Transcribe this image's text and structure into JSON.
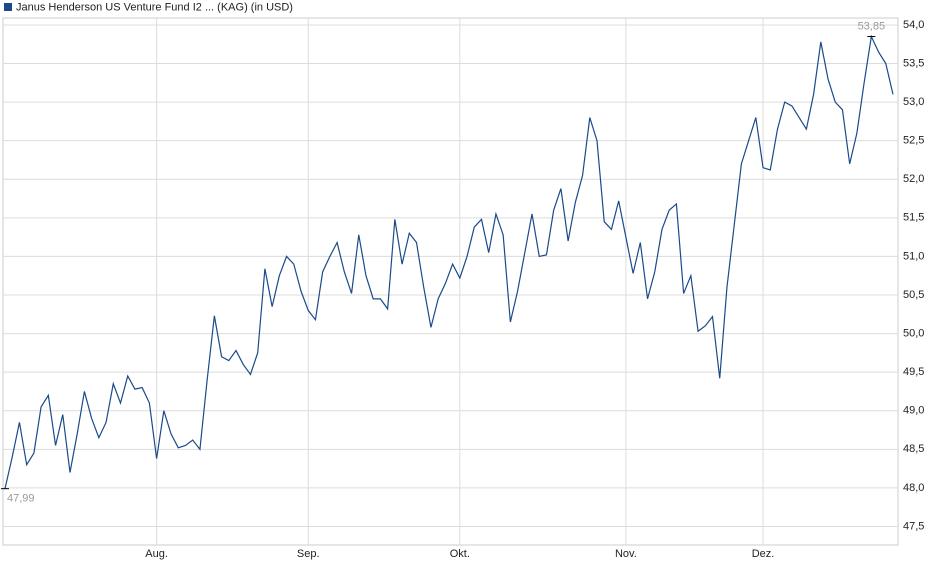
{
  "chart_data": {
    "type": "line",
    "categories": [
      null,
      null,
      null,
      null,
      null,
      null,
      null,
      null,
      null,
      null,
      null,
      null,
      null,
      null,
      null,
      null,
      null,
      null,
      null,
      null,
      null,
      "Aug.",
      null,
      null,
      null,
      null,
      null,
      null,
      null,
      null,
      null,
      null,
      null,
      null,
      null,
      null,
      null,
      null,
      null,
      null,
      null,
      null,
      "Sep.",
      null,
      null,
      null,
      null,
      null,
      null,
      null,
      null,
      null,
      null,
      null,
      null,
      null,
      null,
      null,
      null,
      null,
      null,
      null,
      null,
      "Okt.",
      null,
      null,
      null,
      null,
      null,
      null,
      null,
      null,
      null,
      null,
      null,
      null,
      null,
      null,
      null,
      null,
      null,
      null,
      null,
      null,
      null,
      null,
      "Nov.",
      null,
      null,
      null,
      null,
      null,
      null,
      null,
      null,
      null,
      null,
      null,
      null,
      null,
      null,
      null,
      null,
      null,
      null,
      "Dez.",
      null,
      null,
      null,
      null,
      null,
      null,
      null,
      null,
      null,
      null,
      null,
      null,
      null,
      null,
      null,
      null,
      null,
      null
    ],
    "series": [
      {
        "name": "Janus Henderson US Venture Fund I2 ... (KAG) (in USD)",
        "color": "#1a4a8a",
        "values": [
          47.99,
          48.4,
          48.85,
          48.3,
          48.45,
          49.05,
          49.2,
          48.55,
          48.95,
          48.2,
          48.7,
          49.25,
          48.9,
          48.65,
          48.85,
          49.35,
          49.1,
          49.45,
          49.28,
          49.3,
          49.1,
          48.38,
          49.0,
          48.7,
          48.52,
          48.55,
          48.62,
          48.5,
          49.4,
          50.23,
          49.7,
          49.65,
          49.78,
          49.6,
          49.47,
          49.75,
          50.84,
          50.35,
          50.75,
          51.0,
          50.9,
          50.55,
          50.3,
          50.18,
          50.8,
          51.0,
          51.18,
          50.8,
          50.52,
          51.28,
          50.75,
          50.45,
          50.45,
          50.32,
          51.48,
          50.9,
          51.3,
          51.18,
          50.6,
          50.08,
          50.45,
          50.65,
          50.9,
          50.72,
          51.0,
          51.38,
          51.48,
          51.05,
          51.55,
          51.28,
          50.15,
          50.55,
          51.05,
          51.55,
          51.0,
          51.02,
          51.6,
          51.88,
          51.2,
          51.7,
          52.05,
          52.8,
          52.5,
          51.45,
          51.35,
          51.72,
          51.25,
          50.78,
          51.18,
          50.45,
          50.8,
          51.35,
          51.6,
          51.68,
          50.52,
          50.75,
          50.03,
          50.1,
          50.22,
          49.42,
          50.6,
          51.4,
          52.2,
          52.5,
          52.8,
          52.15,
          52.12,
          52.65,
          53.0,
          52.95,
          52.8,
          52.65,
          53.1,
          53.78,
          53.3,
          53.0,
          52.9,
          52.2,
          52.6,
          53.25,
          53.85,
          53.65,
          53.5,
          53.1
        ],
        "value_labels": [
          "47,99",
          null,
          null,
          null,
          null,
          null,
          null,
          null,
          null,
          null,
          null,
          null,
          null,
          null,
          null,
          null,
          null,
          null,
          null,
          null,
          null,
          null,
          null,
          null,
          null,
          null,
          null,
          null,
          null,
          null,
          null,
          null,
          null,
          null,
          null,
          null,
          null,
          null,
          null,
          null,
          null,
          null,
          null,
          null,
          null,
          null,
          null,
          null,
          null,
          null,
          null,
          null,
          null,
          null,
          null,
          null,
          null,
          null,
          null,
          null,
          null,
          null,
          null,
          null,
          null,
          null,
          null,
          null,
          null,
          null,
          null,
          null,
          null,
          null,
          null,
          null,
          null,
          null,
          null,
          null,
          null,
          null,
          null,
          null,
          null,
          null,
          null,
          null,
          null,
          null,
          null,
          null,
          null,
          null,
          null,
          null,
          null,
          null,
          null,
          null,
          null,
          null,
          null,
          null,
          null,
          null,
          null,
          null,
          null,
          null,
          null,
          null,
          null,
          null,
          null,
          null,
          null,
          null,
          null,
          null,
          "53,85",
          null,
          null,
          null
        ]
      }
    ],
    "ylim": [
      47.26,
      54.09
    ],
    "yticks": [
      {
        "value": 47.5,
        "label": "47,5"
      },
      {
        "value": 48,
        "label": "48,0"
      },
      {
        "value": 48.5,
        "label": "48,5"
      },
      {
        "value": 49,
        "label": "49,0"
      },
      {
        "value": 49.5,
        "label": "49,5"
      },
      {
        "value": 50,
        "label": "50,0"
      },
      {
        "value": 50.5,
        "label": "50,5"
      },
      {
        "value": 51,
        "label": "51,0"
      },
      {
        "value": 51.5,
        "label": "51,5"
      },
      {
        "value": 52,
        "label": "52,0"
      },
      {
        "value": 52.5,
        "label": "52,5"
      },
      {
        "value": 53,
        "label": "53,0"
      },
      {
        "value": 53.5,
        "label": "53,5"
      },
      {
        "value": 54,
        "label": "54,0"
      }
    ],
    "grid": true
  }
}
